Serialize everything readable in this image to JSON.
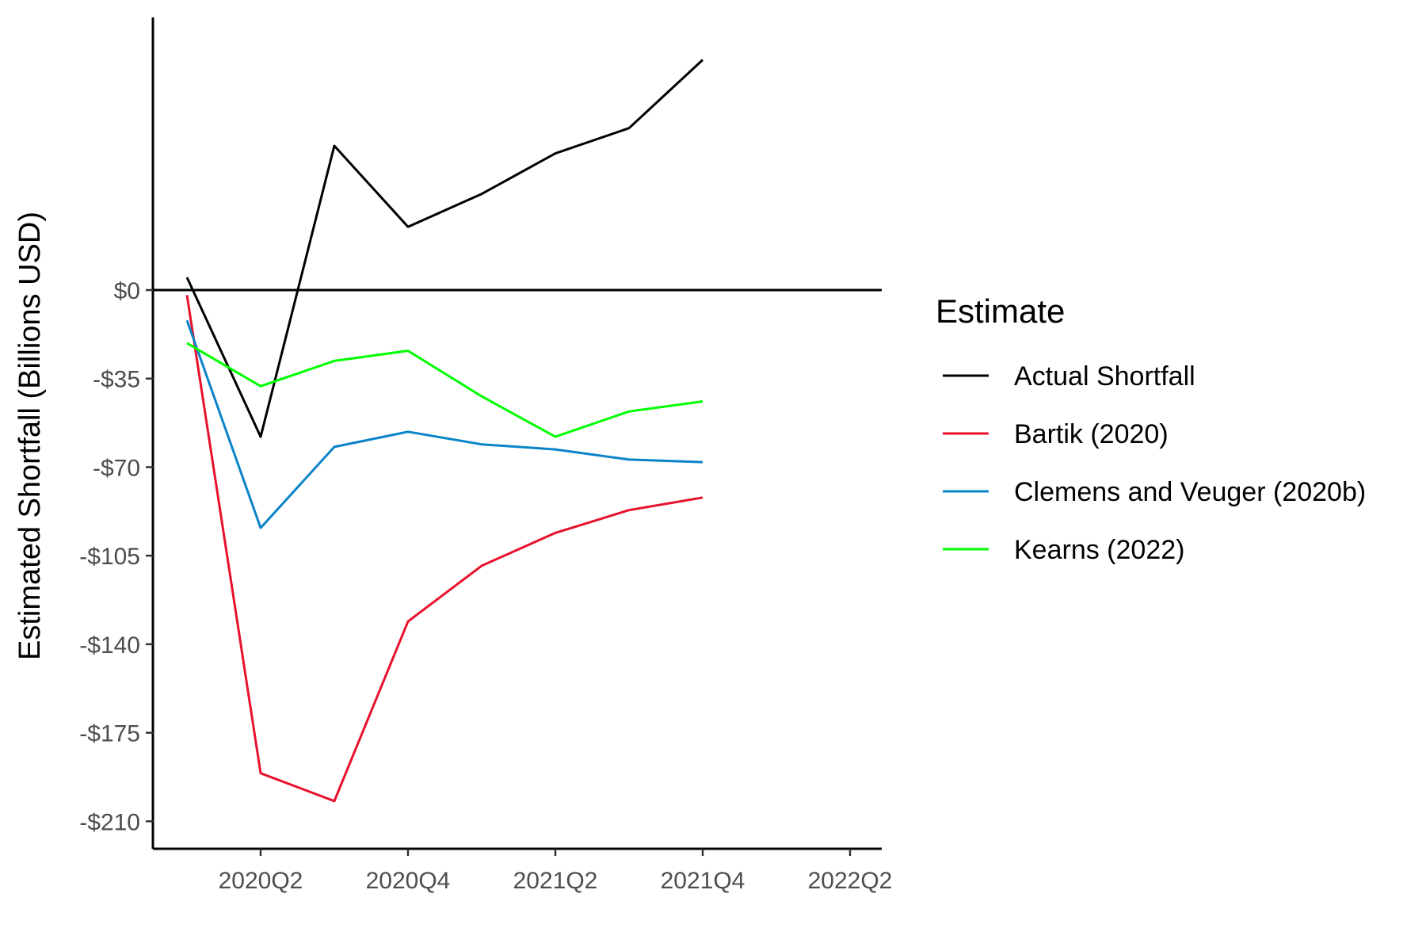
{
  "chart_data": {
    "type": "line",
    "xlabel": "",
    "ylabel": "Estimated Shortfall (Billions USD)",
    "x": [
      "2020Q1",
      "2020Q2",
      "2020Q3",
      "2020Q4",
      "2021Q1",
      "2021Q2",
      "2021Q3",
      "2021Q4"
    ],
    "x_tick_labels": [
      "2020Q2",
      "2020Q4",
      "2021Q2",
      "2021Q4",
      "2022Q2"
    ],
    "y_ticks": [
      0,
      -35,
      -70,
      -105,
      -140,
      -175,
      -210
    ],
    "y_tick_labels": [
      "$0",
      "-$35",
      "-$70",
      "-$105",
      "-$140",
      "-$175",
      "-$210"
    ],
    "ylim": [
      -214,
      106
    ],
    "xlim": [
      "2020Q1",
      "2022Q2"
    ],
    "grid": false,
    "hline_y": 0,
    "legend": {
      "title": "Estimate",
      "position": "right"
    },
    "series": [
      {
        "name": "Actual Shortfall",
        "color": "#000000",
        "values": [
          5,
          -58,
          57,
          25,
          38,
          54,
          64,
          91
        ]
      },
      {
        "name": "Bartik (2020)",
        "color": "#e8112d",
        "values": [
          -2,
          -191,
          -202,
          -131,
          -109,
          -96,
          -87,
          -82
        ]
      },
      {
        "name": "Clemens and Veuger (2020b)",
        "color": "#0a84c8",
        "values": [
          -12,
          -94,
          -62,
          -56,
          -61,
          -63,
          -67,
          -68
        ]
      },
      {
        "name": "Kearns (2022)",
        "color": "#00ff00",
        "values": [
          -21,
          -38,
          -28,
          -24,
          -42,
          -58,
          -48,
          -44
        ]
      }
    ]
  }
}
